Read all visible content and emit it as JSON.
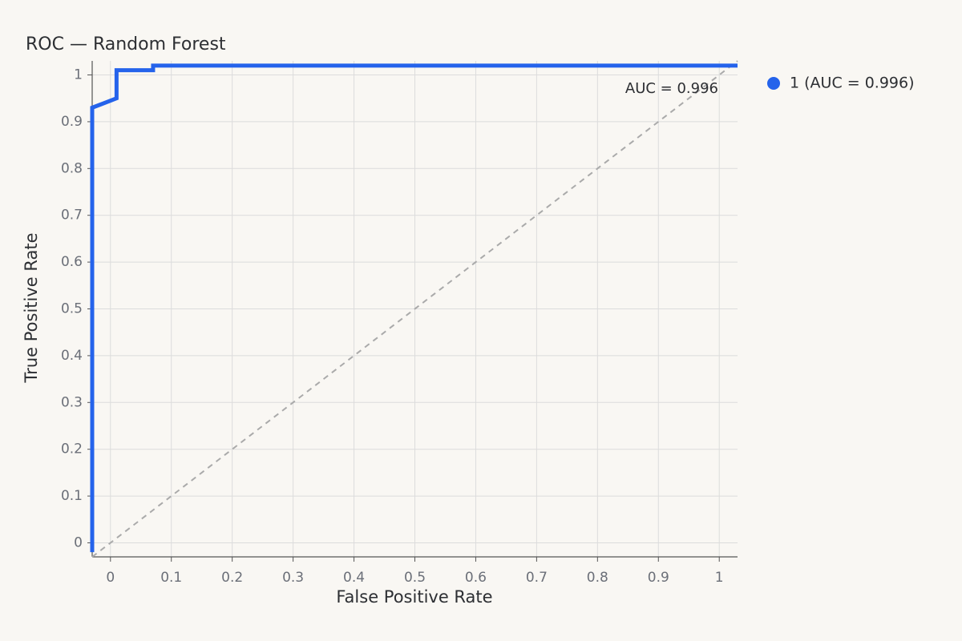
{
  "chart_data": {
    "type": "line",
    "title": "ROC — Random Forest",
    "xlabel": "False Positive Rate",
    "ylabel": "True Positive Rate",
    "xlim": [
      -0.03,
      1.03
    ],
    "ylim": [
      -0.03,
      1.03
    ],
    "xticks": [
      0,
      0.1,
      0.2,
      0.3,
      0.4,
      0.5,
      0.6,
      0.7,
      0.8,
      0.9,
      1
    ],
    "yticks": [
      0,
      0.1,
      0.2,
      0.3,
      0.4,
      0.5,
      0.6,
      0.7,
      0.8,
      0.9,
      1
    ],
    "xtick_labels": [
      "0",
      "0.1",
      "0.2",
      "0.3",
      "0.4",
      "0.5",
      "0.6",
      "0.7",
      "0.8",
      "0.9",
      "1"
    ],
    "ytick_labels": [
      "0",
      "0.1",
      "0.2",
      "0.3",
      "0.4",
      "0.5",
      "0.6",
      "0.7",
      "0.8",
      "0.9",
      "1"
    ],
    "grid": true,
    "legend_position": "top-right outside",
    "series": [
      {
        "name": "1 (AUC = 0.996)",
        "color": "#2563eb",
        "x": [
          -0.03,
          -0.03,
          0.01,
          0.01,
          0.07,
          0.07,
          1.03
        ],
        "y": [
          -0.02,
          0.93,
          0.95,
          1.01,
          1.01,
          1.02,
          1.02
        ]
      }
    ],
    "reference_line": {
      "x": [
        -0.03,
        1.03
      ],
      "y": [
        -0.03,
        1.03
      ],
      "color": "#aaaaaa",
      "style": "dashed"
    },
    "annotation": {
      "text": "AUC = 0.996",
      "position": "top-right"
    }
  }
}
